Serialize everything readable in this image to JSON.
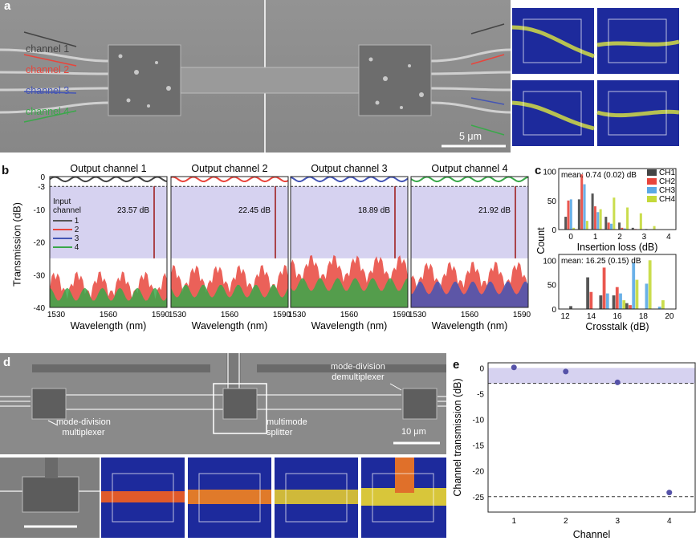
{
  "panels": {
    "a": "a",
    "b": "b",
    "c": "c",
    "d": "d",
    "e": "e"
  },
  "panel_a": {
    "channels": [
      {
        "label": "channel 1",
        "color": "#444444"
      },
      {
        "label": "channel 2",
        "color": "#e8453c"
      },
      {
        "label": "channel 3",
        "color": "#4455b5"
      },
      {
        "label": "channel 4",
        "color": "#3aa84a"
      }
    ],
    "scale_bar": "5 μm"
  },
  "panel_b": {
    "titles": [
      "Output channel 1",
      "Output channel 2",
      "Output channel 3",
      "Output channel 4"
    ],
    "ylabel": "Transmission (dB)",
    "xlabel": "Wavelength (nm)",
    "yticks": [
      "0",
      "-3",
      "-10",
      "-20",
      "-30",
      "-40"
    ],
    "xticks": [
      "1530",
      "1560",
      "1590"
    ],
    "legend_title": "Input channel",
    "legend": [
      "1",
      "2",
      "3",
      "4"
    ],
    "annotations": [
      "23.57 dB",
      "22.45 dB",
      "18.89 dB",
      "21.92 dB"
    ]
  },
  "panel_c": {
    "top": {
      "mean": "mean: 0.74 (0.02) dB",
      "xlabel": "Insertion loss (dB)",
      "xticks": [
        "0",
        "1",
        "2",
        "3",
        "4"
      ],
      "yticks": [
        "0",
        "50",
        "100"
      ]
    },
    "bottom": {
      "mean": "mean: 16.25 (0.15) dB",
      "xlabel": "Crosstalk (dB)",
      "xticks": [
        "12",
        "14",
        "16",
        "18",
        "20"
      ],
      "yticks": [
        "0",
        "50",
        "100"
      ]
    },
    "ylabel": "Count",
    "legend": [
      "CH1",
      "CH2",
      "CH3",
      "CH4"
    ]
  },
  "panel_d": {
    "mux_label": "mode-division\nmultiplexer",
    "demux_label": "mode-division\ndemultiplexer",
    "splitter_label": "multimode\nsplitter",
    "scale_bar": "10 μm"
  },
  "chart_data": [
    {
      "type": "histogram",
      "title": "",
      "annotation": "mean: 0.74 (0.02) dB",
      "xlabel": "Insertion loss (dB)",
      "ylabel": "Count",
      "xlim": [
        -0.5,
        4.3
      ],
      "ylim": [
        0,
        105
      ],
      "categories": [
        -0.1,
        0.45,
        1.0,
        1.55,
        2.1,
        2.65,
        3.2
      ],
      "series": [
        {
          "name": "CH1",
          "color": "#444444",
          "values": [
            22,
            52,
            62,
            22,
            12,
            3,
            1
          ]
        },
        {
          "name": "CH2",
          "color": "#e8453c",
          "values": [
            50,
            95,
            40,
            12,
            3,
            1,
            0
          ]
        },
        {
          "name": "CH3",
          "color": "#5aa9e6",
          "values": [
            52,
            78,
            30,
            10,
            2,
            0,
            0
          ]
        },
        {
          "name": "CH4",
          "color": "#c4d93a",
          "values": [
            3,
            15,
            35,
            55,
            38,
            28,
            6
          ]
        }
      ]
    },
    {
      "type": "histogram",
      "title": "",
      "annotation": "mean: 16.25 (0.15) dB",
      "xlabel": "Crosstalk (dB)",
      "ylabel": "Count",
      "xlim": [
        11.5,
        20.5
      ],
      "ylim": [
        0,
        112
      ],
      "categories": [
        12.7,
        14,
        15,
        16,
        17,
        18,
        19
      ],
      "series": [
        {
          "name": "CH1",
          "color": "#444444",
          "values": [
            6,
            65,
            28,
            28,
            12,
            0,
            0
          ]
        },
        {
          "name": "CH2",
          "color": "#e8453c",
          "values": [
            0,
            35,
            85,
            45,
            8,
            0,
            0
          ]
        },
        {
          "name": "CH3",
          "color": "#5aa9e6",
          "values": [
            0,
            0,
            32,
            32,
            95,
            52,
            5
          ]
        },
        {
          "name": "CH4",
          "color": "#c4d93a",
          "values": [
            0,
            0,
            0,
            18,
            60,
            100,
            18
          ]
        }
      ]
    },
    {
      "type": "scatter",
      "title": "",
      "xlabel": "Channel",
      "ylabel": "Channel transmission (dB)",
      "xlim": [
        0.5,
        4.5
      ],
      "ylim": [
        -28,
        1
      ],
      "xticks": [
        1,
        2,
        3,
        4
      ],
      "yticks": [
        0,
        -5,
        -10,
        -15,
        -20,
        -25
      ],
      "x": [
        1,
        2,
        3,
        4
      ],
      "y": [
        0.1,
        -0.7,
        -2.8,
        -24.2
      ],
      "reference_lines": [
        -3,
        -25
      ]
    }
  ]
}
